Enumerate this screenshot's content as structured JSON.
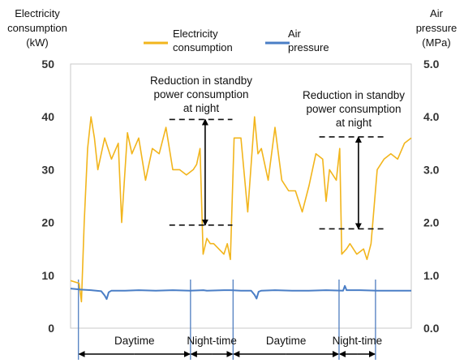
{
  "chart_data": {
    "type": "line",
    "left_axis": {
      "title_lines": [
        "Electricity",
        "consumption",
        "(kW)"
      ],
      "ticks": [
        "0",
        "10",
        "20",
        "30",
        "40",
        "50"
      ],
      "range": [
        0,
        50
      ]
    },
    "right_axis": {
      "title_lines": [
        "Air",
        "pressure",
        "(MPa)"
      ],
      "ticks": [
        "0.0",
        "1.0",
        "2.0",
        "3.0",
        "4.0",
        "5.0"
      ],
      "range": [
        0,
        5
      ]
    },
    "x_range": [
      0,
      100
    ],
    "legend": {
      "placement": "top",
      "items": [
        {
          "label_lines": [
            "Electricity",
            "consumption"
          ],
          "color": "#F2B51C",
          "axis": "left"
        },
        {
          "label_lines": [
            "Air",
            "pressure"
          ],
          "color": "#4A7EC6",
          "axis": "right"
        }
      ]
    },
    "series": [
      {
        "name": "Electricity consumption",
        "axis": "left",
        "color": "#F2B51C",
        "x": [
          0,
          2.5,
          3.2,
          4,
          5,
          6,
          7,
          8,
          10,
          12,
          14,
          15,
          16.7,
          18,
          20,
          22,
          24,
          26,
          28,
          30,
          32,
          34,
          36,
          37,
          38,
          38.9,
          40,
          41,
          42,
          43.5,
          45,
          46,
          46.9,
          48,
          50,
          52,
          54,
          55,
          56,
          58,
          60,
          62,
          64,
          66,
          68,
          70,
          72,
          74,
          75,
          76,
          78,
          79,
          79.6,
          81,
          82,
          84,
          86,
          87,
          88.2,
          90,
          92,
          94,
          96,
          98,
          100
        ],
        "y": [
          9,
          8.5,
          5,
          20,
          34,
          40,
          36,
          30,
          36,
          32,
          35,
          20,
          37,
          33,
          36,
          28,
          34,
          33,
          38,
          30,
          30,
          29,
          30,
          31,
          34,
          14,
          17,
          16,
          16,
          15,
          14,
          16,
          13,
          36,
          36,
          22,
          40,
          33,
          34,
          28,
          38,
          28,
          26,
          26,
          22,
          27,
          33,
          32,
          24,
          30,
          28,
          34,
          14,
          15,
          16,
          14,
          15,
          13,
          16,
          30,
          32,
          33,
          32,
          35,
          36
        ]
      },
      {
        "name": "Air pressure",
        "axis": "right",
        "color": "#4A7EC6",
        "x": [
          0,
          3,
          6,
          9,
          10,
          10.6,
          11.2,
          12,
          16,
          20,
          25,
          30,
          35,
          39,
          40,
          45,
          47,
          50,
          53,
          54,
          54.6,
          55.2,
          56,
          60,
          65,
          70,
          75,
          80,
          80.5,
          81,
          85,
          90,
          95,
          100
        ],
        "y": [
          0.75,
          0.73,
          0.72,
          0.7,
          0.62,
          0.55,
          0.68,
          0.71,
          0.71,
          0.72,
          0.71,
          0.72,
          0.71,
          0.72,
          0.71,
          0.72,
          0.72,
          0.71,
          0.71,
          0.63,
          0.56,
          0.69,
          0.71,
          0.72,
          0.71,
          0.71,
          0.72,
          0.71,
          0.8,
          0.72,
          0.72,
          0.71,
          0.71,
          0.71
        ]
      }
    ],
    "annotations": [
      {
        "text_lines": [
          "Reduction in standby",
          "power consumption",
          "at night"
        ],
        "top": 39.5,
        "bottom": 19.5,
        "from_x": 29,
        "to_x": 47.5,
        "arrow_x": 39.5
      },
      {
        "text_lines": [
          "Reduction in standby",
          "power consumption",
          "at night"
        ],
        "top": 36.2,
        "bottom": 18.8,
        "from_x": 73,
        "to_x": 92,
        "arrow_x": 84.5
      }
    ],
    "dividers": [
      2.3,
      35.2,
      47.7,
      78.8,
      89.5
    ],
    "periods": [
      {
        "label": "Daytime",
        "from": 2.3,
        "to": 35.2
      },
      {
        "label": "Night-time",
        "from": 35.2,
        "to": 47.7
      },
      {
        "label": "Daytime",
        "from": 47.7,
        "to": 78.8
      },
      {
        "label": "Night-time",
        "from": 78.8,
        "to": 89.5
      }
    ]
  }
}
